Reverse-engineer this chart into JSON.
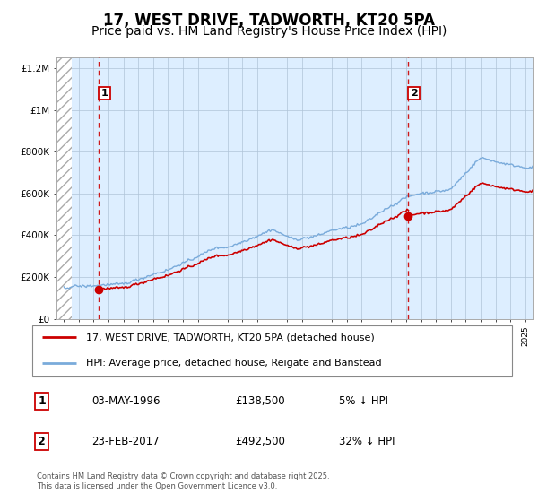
{
  "title": "17, WEST DRIVE, TADWORTH, KT20 5PA",
  "subtitle": "Price paid vs. HM Land Registry's House Price Index (HPI)",
  "legend_line1": "17, WEST DRIVE, TADWORTH, KT20 5PA (detached house)",
  "legend_line2": "HPI: Average price, detached house, Reigate and Banstead",
  "footer": "Contains HM Land Registry data © Crown copyright and database right 2025.\nThis data is licensed under the Open Government Licence v3.0.",
  "annotation1_label": "1",
  "annotation1_date": "03-MAY-1996",
  "annotation1_price": "£138,500",
  "annotation1_hpi": "5% ↓ HPI",
  "annotation2_label": "2",
  "annotation2_date": "23-FEB-2017",
  "annotation2_price": "£492,500",
  "annotation2_hpi": "32% ↓ HPI",
  "purchase1_year": 1996.35,
  "purchase1_price": 138500,
  "purchase2_year": 2017.15,
  "purchase2_price": 492500,
  "xmin": 1993.5,
  "xmax": 2025.5,
  "ymin": 0,
  "ymax": 1250000,
  "hatch_end": 1994.5,
  "red_color": "#cc0000",
  "blue_color": "#7aabdb",
  "bg_color": "#ddeeff",
  "grid_color": "#b0c4d8",
  "title_fontsize": 12,
  "subtitle_fontsize": 10
}
